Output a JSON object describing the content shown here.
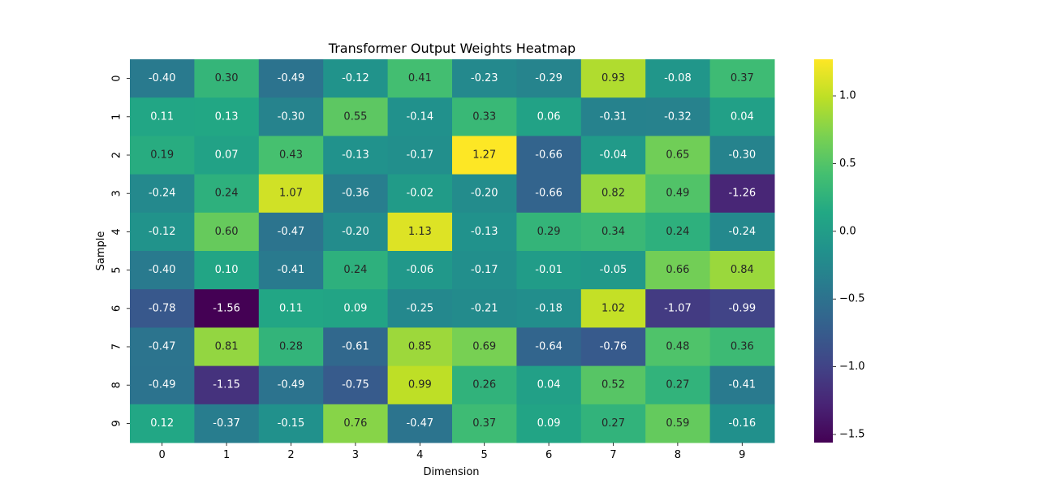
{
  "chart_data": {
    "type": "heatmap",
    "title": "Transformer Output Weights Heatmap",
    "xlabel": "Dimension",
    "ylabel": "Sample",
    "x_categories": [
      "0",
      "1",
      "2",
      "3",
      "4",
      "5",
      "6",
      "7",
      "8",
      "9"
    ],
    "y_categories": [
      "0",
      "1",
      "2",
      "3",
      "4",
      "5",
      "6",
      "7",
      "8",
      "9"
    ],
    "values": [
      [
        -0.4,
        0.3,
        -0.49,
        -0.12,
        0.41,
        -0.23,
        -0.29,
        0.93,
        -0.08,
        0.37
      ],
      [
        0.11,
        0.13,
        -0.3,
        0.55,
        -0.14,
        0.33,
        0.06,
        -0.31,
        -0.32,
        0.04
      ],
      [
        0.19,
        0.07,
        0.43,
        -0.13,
        -0.17,
        1.27,
        -0.66,
        -0.04,
        0.65,
        -0.3
      ],
      [
        -0.24,
        0.24,
        1.07,
        -0.36,
        -0.02,
        -0.2,
        -0.66,
        0.82,
        0.49,
        -1.26
      ],
      [
        -0.12,
        0.6,
        -0.47,
        -0.2,
        1.13,
        -0.13,
        0.29,
        0.34,
        0.24,
        -0.24
      ],
      [
        -0.4,
        0.1,
        -0.41,
        0.24,
        -0.06,
        -0.17,
        -0.01,
        -0.05,
        0.66,
        0.84
      ],
      [
        -0.78,
        -1.56,
        0.11,
        0.09,
        -0.25,
        -0.21,
        -0.18,
        1.02,
        -1.07,
        -0.99
      ],
      [
        -0.47,
        0.81,
        0.28,
        -0.61,
        0.85,
        0.69,
        -0.64,
        -0.76,
        0.48,
        0.36
      ],
      [
        -0.49,
        -1.15,
        -0.49,
        -0.75,
        0.99,
        0.26,
        0.04,
        0.52,
        0.27,
        -0.41
      ],
      [
        0.12,
        -0.37,
        -0.15,
        0.76,
        -0.47,
        0.37,
        0.09,
        0.27,
        0.59,
        -0.16
      ]
    ],
    "colormap": "viridis",
    "vmin": -1.56,
    "vmax": 1.27,
    "colorbar_ticks": [
      -1.5,
      -1.0,
      -0.5,
      0.0,
      0.5,
      1.0
    ],
    "colorbar_tick_labels": [
      "−1.5",
      "−1.0",
      "−0.5",
      "0.0",
      "0.5",
      "1.0"
    ],
    "annotate": true,
    "annotation_format": "2 decimals"
  }
}
